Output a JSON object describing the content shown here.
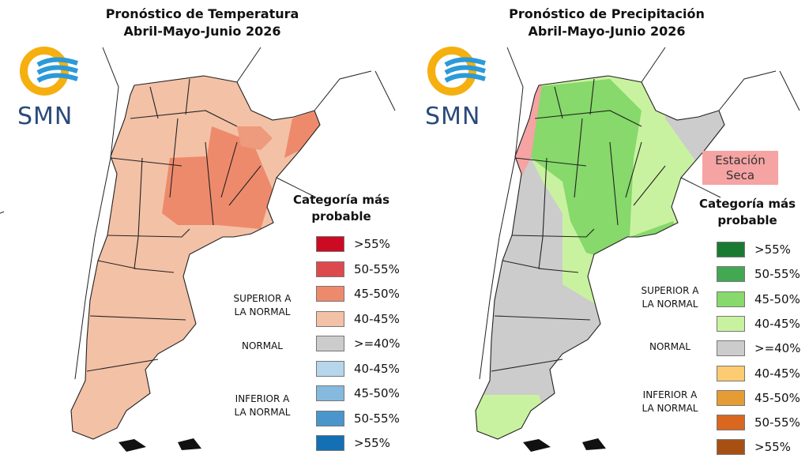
{
  "temperature": {
    "title_line1": "Pronóstico de Temperatura",
    "title_line2": "Abril-Mayo-Junio 2026",
    "logo_text": "SMN",
    "legend_title_line1": "Categoría más",
    "legend_title_line2": "probable",
    "categories": {
      "superior": [
        "SUPERIOR A",
        "LA NORMAL"
      ],
      "normal": "NORMAL",
      "inferior": [
        "INFERIOR A",
        "LA NORMAL"
      ]
    },
    "legend": [
      {
        "label": ">55%",
        "color": "#cc0a24"
      },
      {
        "label": "50-55%",
        "color": "#dd4a4e"
      },
      {
        "label": "45-50%",
        "color": "#ee8a6c"
      },
      {
        "label": "40-45%",
        "color": "#f3c1a6"
      },
      {
        "label": ">=40%",
        "color": "#cccccc"
      },
      {
        "label": "40-45%",
        "color": "#b6d6ec"
      },
      {
        "label": "45-50%",
        "color": "#85b9de"
      },
      {
        "label": "50-55%",
        "color": "#4a96cc"
      },
      {
        "label": ">55%",
        "color": "#1370b4"
      }
    ]
  },
  "precipitation": {
    "title_line1": "Pronóstico de Precipitación",
    "title_line2": "Abril-Mayo-Junio 2026",
    "logo_text": "SMN",
    "dry_season_label": "Estación Seca",
    "legend_title_line1": "Categoría más",
    "legend_title_line2": "probable",
    "categories": {
      "superior": [
        "SUPERIOR A",
        "LA NORMAL"
      ],
      "normal": "NORMAL",
      "inferior": [
        "INFERIOR A",
        "LA NORMAL"
      ]
    },
    "legend": [
      {
        "label": ">55%",
        "color": "#1a7a32"
      },
      {
        "label": "50-55%",
        "color": "#43a852"
      },
      {
        "label": "45-50%",
        "color": "#86d96a"
      },
      {
        "label": "40-45%",
        "color": "#c9f2a0"
      },
      {
        "label": ">=40%",
        "color": "#cccccc"
      },
      {
        "label": "40-45%",
        "color": "#fdcb72"
      },
      {
        "label": "45-50%",
        "color": "#e59c35"
      },
      {
        "label": "50-55%",
        "color": "#d9671f"
      },
      {
        "label": ">55%",
        "color": "#a85014"
      }
    ]
  }
}
